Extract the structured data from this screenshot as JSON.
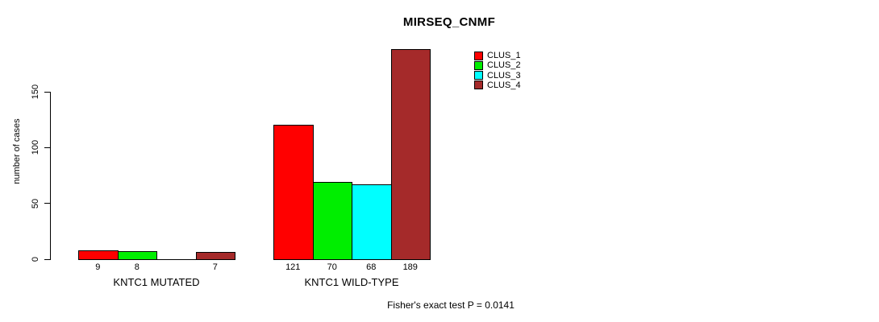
{
  "title": "MIRSEQ_CNMF",
  "footer": "Fisher's exact test P = 0.0141",
  "chart_data": {
    "type": "bar",
    "title": "MIRSEQ_CNMF",
    "xlabel": "",
    "ylabel": "number of cases",
    "yticks": [
      0,
      50,
      100,
      150
    ],
    "ylim": [
      0,
      150
    ],
    "grid": false,
    "legend_position": "top-right",
    "categories": [
      "KNTC1 MUTATED",
      "KNTC1 WILD-TYPE"
    ],
    "series": [
      {
        "name": "CLUS_1",
        "color": "#FF0000",
        "values": [
          9,
          121
        ]
      },
      {
        "name": "CLUS_2",
        "color": "#00EE00",
        "values": [
          8,
          70
        ]
      },
      {
        "name": "CLUS_3",
        "color": "#00FFFF",
        "values": [
          0,
          68
        ]
      },
      {
        "name": "CLUS_4",
        "color": "#A52A2A",
        "values": [
          7,
          189
        ]
      }
    ],
    "bar_value_labels": [
      [
        "9",
        "8",
        "",
        "7"
      ],
      [
        "121",
        "70",
        "68",
        "189"
      ]
    ],
    "annotation": "Fisher's exact test P = 0.0141"
  }
}
